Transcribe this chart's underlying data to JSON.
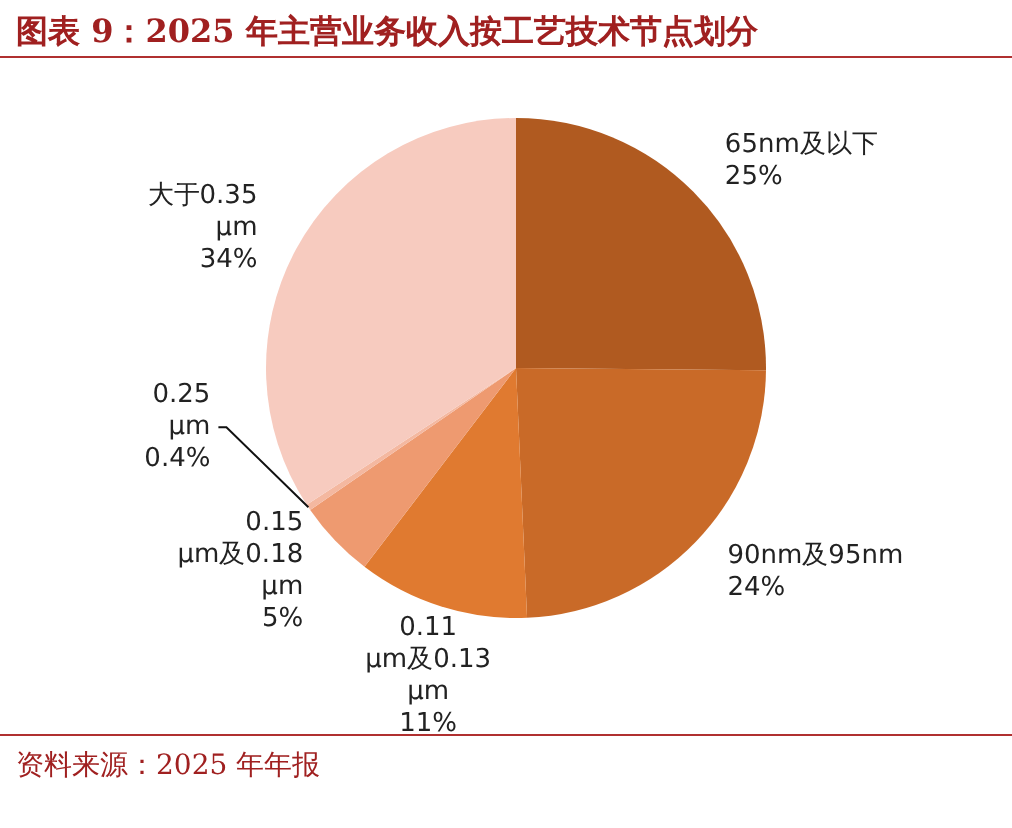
{
  "chart_data": {
    "type": "pie",
    "title": "图表 9：2025 年主营业务收入按工艺技术节点划分",
    "categories": [
      "65nm及以下",
      "90nm及95nm",
      "0.11 μm及0.13 μm",
      "0.15 μm及0.18 μm",
      "0.25 μm",
      "大于0.35 μm"
    ],
    "values": [
      25,
      24,
      11,
      5,
      0.4,
      34
    ],
    "colors": [
      "#b05a20",
      "#c96a28",
      "#e07a30",
      "#ee9a70",
      "#f4b8a0",
      "#f7cbbf"
    ],
    "value_labels": [
      "25%",
      "24%",
      "11%",
      "5%",
      "0.4%",
      "34%"
    ],
    "annotations": [
      "资料来源：2025 年年报"
    ]
  }
}
